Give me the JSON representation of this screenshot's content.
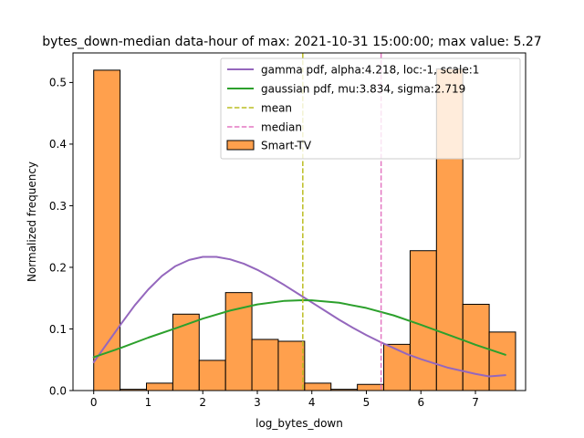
{
  "chart_data": {
    "type": "bar",
    "title": "bytes_down-median data-hour of max: 2021-10-31 15:00:00; max value: 5.27",
    "xlabel": "log_bytes_down",
    "ylabel": "Normalized frequency",
    "xlim": [
      -0.38,
      7.92
    ],
    "ylim": [
      0,
      0.548
    ],
    "xticks": [
      0,
      1,
      2,
      3,
      4,
      5,
      6,
      7
    ],
    "yticks": [
      0.0,
      0.1,
      0.2,
      0.3,
      0.4,
      0.5
    ],
    "ytick_labels": [
      "0.0",
      "0.1",
      "0.2",
      "0.3",
      "0.4",
      "0.5"
    ],
    "grid": false,
    "legend_position": "top-right",
    "histogram": {
      "name": "Smart-TV",
      "color": "#ffa04d",
      "edge_color": "#000000",
      "bin_width": 0.4835,
      "bin_edges": [
        0,
        0.4835,
        0.967,
        1.4505,
        1.934,
        2.4175,
        2.901,
        3.3845,
        3.868,
        4.3515,
        4.835,
        5.3185,
        5.802,
        6.2855,
        6.769,
        7.2525,
        7.736
      ],
      "values": [
        0.52,
        0.002,
        0.012,
        0.124,
        0.049,
        0.159,
        0.083,
        0.08,
        0.012,
        0.002,
        0.01,
        0.075,
        0.227,
        0.522,
        0.14,
        0.095
      ]
    },
    "series": [
      {
        "name": "gamma pdf, alpha:4.218, loc:-1, scale:1",
        "kind": "line",
        "color": "#9467bd",
        "x": [
          0,
          0.25,
          0.5,
          0.75,
          1.0,
          1.25,
          1.5,
          1.75,
          2.0,
          2.25,
          2.5,
          2.75,
          3.0,
          3.25,
          3.5,
          3.75,
          4.0,
          4.25,
          4.5,
          4.75,
          5.0,
          5.25,
          5.5,
          5.75,
          6.0,
          6.25,
          6.5,
          6.75,
          7.0,
          7.25,
          7.55
        ],
        "y": [
          0.046,
          0.077,
          0.108,
          0.138,
          0.164,
          0.186,
          0.202,
          0.212,
          0.217,
          0.217,
          0.213,
          0.206,
          0.196,
          0.184,
          0.171,
          0.157,
          0.143,
          0.129,
          0.115,
          0.102,
          0.09,
          0.079,
          0.069,
          0.059,
          0.051,
          0.044,
          0.037,
          0.032,
          0.027,
          0.023,
          0.025
        ]
      },
      {
        "name": "gaussian pdf, mu:3.834, sigma:2.719",
        "kind": "line",
        "color": "#2ca02c",
        "x": [
          0,
          0.5,
          1.0,
          1.5,
          2.0,
          2.5,
          3.0,
          3.5,
          3.834,
          4.0,
          4.5,
          5.0,
          5.5,
          6.0,
          6.5,
          7.0,
          7.55
        ],
        "y": [
          0.0542,
          0.0693,
          0.0859,
          0.101,
          0.1167,
          0.1298,
          0.1398,
          0.1456,
          0.1467,
          0.1465,
          0.1425,
          0.134,
          0.122,
          0.1067,
          0.0907,
          0.0744,
          0.058
        ]
      },
      {
        "name": "mean",
        "kind": "vline",
        "color": "#bcbd22",
        "x_value": 3.834
      },
      {
        "name": "median",
        "kind": "vline",
        "color": "#e377c2",
        "x_value": 5.27
      }
    ]
  }
}
